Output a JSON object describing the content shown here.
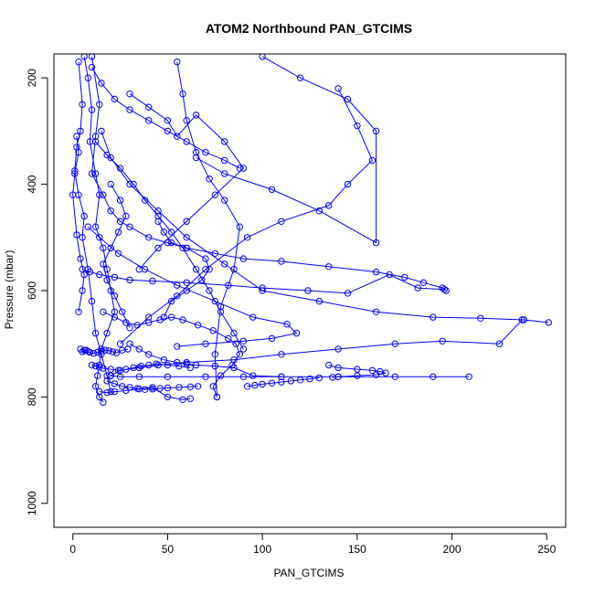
{
  "chart_data": {
    "type": "scatter",
    "title": "ATOM2 Northbound PAN_GTCIMS",
    "xlabel": "PAN_GTCIMS",
    "ylabel": "Pressure (mbar)",
    "xlim": [
      -10,
      260
    ],
    "ylim": [
      1045,
      155
    ],
    "y_reversed": true,
    "x_ticks": [
      0,
      50,
      100,
      150,
      200,
      250
    ],
    "y_ticks": [
      200,
      400,
      600,
      800,
      1000
    ],
    "grid": false,
    "legend": "none",
    "series_color": "#0000ff",
    "series": [
      {
        "x": [
          6,
          8,
          10,
          9,
          12,
          14,
          12,
          16,
          18,
          20,
          22,
          18,
          15,
          14,
          13,
          12,
          14,
          16
        ],
        "y": [
          160,
          200,
          260,
          320,
          380,
          420,
          480,
          520,
          560,
          600,
          640,
          680,
          710,
          740,
          760,
          780,
          800,
          810
        ]
      },
      {
        "x": [
          3,
          5,
          4,
          2,
          1,
          3,
          6,
          5,
          8,
          10,
          12,
          15,
          18,
          20
        ],
        "y": [
          170,
          250,
          300,
          330,
          375,
          420,
          460,
          500,
          560,
          620,
          680,
          720,
          760,
          790
        ]
      },
      {
        "x": [
          10,
          14,
          12,
          10,
          16,
          20,
          25,
          30,
          40,
          50,
          60,
          75,
          90,
          110,
          135,
          160,
          175,
          185,
          195,
          197
        ],
        "y": [
          160,
          250,
          310,
          380,
          420,
          450,
          470,
          480,
          500,
          510,
          520,
          530,
          540,
          545,
          555,
          565,
          575,
          585,
          595,
          600
        ]
      },
      {
        "x": [
          15,
          20,
          30,
          45,
          60,
          80,
          100,
          130,
          160,
          190,
          215,
          238,
          251
        ],
        "y": [
          300,
          350,
          400,
          450,
          500,
          550,
          600,
          620,
          640,
          650,
          652,
          655,
          660
        ]
      },
      {
        "x": [
          237,
          225,
          195,
          170,
          140,
          110,
          85,
          60,
          45,
          35,
          25,
          20
        ],
        "y": [
          655,
          700,
          695,
          700,
          710,
          720,
          730,
          735,
          740,
          745,
          750,
          760
        ]
      },
      {
        "x": [
          20,
          25,
          35,
          50,
          70,
          90,
          110,
          140,
          170,
          190,
          209
        ],
        "y": [
          760,
          762,
          762,
          762,
          762,
          762,
          762,
          762,
          762,
          762,
          762
        ]
      },
      {
        "x": [
          140,
          150,
          158,
          145,
          135,
          110,
          92,
          70,
          55,
          40,
          25
        ],
        "y": [
          220,
          290,
          355,
          400,
          440,
          470,
          500,
          560,
          610,
          650,
          700
        ]
      },
      {
        "x": [
          100,
          120,
          145,
          160,
          160,
          130,
          105,
          80,
          65
        ],
        "y": [
          160,
          200,
          240,
          300,
          510,
          450,
          410,
          380,
          350
        ]
      },
      {
        "x": [
          30,
          40,
          50,
          55,
          65,
          80,
          90,
          75,
          60,
          45,
          35
        ],
        "y": [
          230,
          255,
          280,
          310,
          270,
          320,
          370,
          420,
          470,
          520,
          560
        ]
      },
      {
        "x": [
          12,
          18,
          25,
          32,
          38,
          45,
          52,
          58,
          65,
          72,
          78,
          85,
          90
        ],
        "y": [
          320,
          345,
          370,
          400,
          430,
          460,
          490,
          520,
          560,
          600,
          640,
          680,
          710
        ]
      },
      {
        "x": [
          16,
          22,
          28,
          34,
          40,
          46,
          52,
          58,
          66,
          74,
          82,
          86,
          88,
          84,
          78,
          74,
          76
        ],
        "y": [
          640,
          650,
          660,
          665,
          660,
          655,
          650,
          655,
          665,
          675,
          690,
          700,
          720,
          740,
          760,
          780,
          800
        ]
      },
      {
        "x": [
          8,
          14,
          24,
          38,
          55,
          75,
          95,
          113,
          118,
          105,
          90,
          70,
          55
        ],
        "y": [
          480,
          500,
          530,
          560,
          590,
          620,
          650,
          663,
          680,
          690,
          695,
          700,
          705
        ]
      },
      {
        "x": [
          5,
          9,
          14,
          22,
          30,
          42,
          60,
          82,
          100,
          124,
          145,
          167,
          182,
          196
        ],
        "y": [
          560,
          565,
          570,
          575,
          580,
          582,
          585,
          590,
          595,
          600,
          605,
          570,
          595,
          598
        ]
      },
      {
        "x": [
          10,
          15,
          22,
          30,
          40,
          50,
          60,
          70,
          80,
          88
        ],
        "y": [
          180,
          210,
          240,
          260,
          280,
          300,
          320,
          340,
          355,
          370
        ]
      },
      {
        "x": [
          30,
          35,
          40,
          48,
          55,
          60,
          65,
          75,
          85,
          95,
          110
        ],
        "y": [
          700,
          710,
          720,
          730,
          735,
          738,
          740,
          742,
          745,
          760,
          762
        ]
      },
      {
        "x": [
          18,
          22,
          26,
          30,
          34,
          38,
          42,
          46,
          50,
          56,
          62,
          66
        ],
        "y": [
          770,
          775,
          780,
          782,
          784,
          786,
          785,
          784,
          783,
          782,
          781,
          780
        ]
      },
      {
        "x": [
          4,
          6,
          8,
          7,
          5,
          9,
          11,
          13,
          15,
          17,
          19,
          21,
          23,
          26,
          29
        ],
        "y": [
          710,
          712,
          714,
          712,
          715,
          716,
          718,
          716,
          714,
          712,
          713,
          715,
          717,
          712,
          710
        ]
      },
      {
        "x": [
          10,
          12,
          14,
          16,
          20,
          24,
          28,
          32,
          36,
          40,
          44,
          50,
          56,
          62
        ],
        "y": [
          740,
          742,
          744,
          746,
          748,
          750,
          748,
          745,
          742,
          740,
          738,
          740,
          742,
          745
        ]
      },
      {
        "x": [
          55,
          58,
          60,
          65,
          72,
          80,
          88,
          85,
          78,
          75,
          76
        ],
        "y": [
          170,
          230,
          280,
          340,
          390,
          430,
          480,
          560,
          630,
          720,
          800
        ]
      },
      {
        "x": [
          20,
          25,
          28,
          24,
          20,
          16,
          18,
          22,
          26,
          30
        ],
        "y": [
          400,
          430,
          460,
          490,
          520,
          550,
          580,
          610,
          640,
          670
        ]
      },
      {
        "x": [
          2,
          3,
          1,
          0,
          2,
          4,
          6,
          5,
          3
        ],
        "y": [
          310,
          340,
          380,
          420,
          495,
          540,
          570,
          600,
          640
        ]
      },
      {
        "x": [
          45,
          48,
          52,
          60,
          70,
          72,
          68,
          60,
          52,
          48
        ],
        "y": [
          470,
          490,
          510,
          520,
          540,
          560,
          580,
          600,
          620,
          650
        ]
      },
      {
        "x": [
          14,
          18,
          22,
          28,
          35,
          42,
          50,
          58,
          62
        ],
        "y": [
          790,
          792,
          790,
          788,
          785,
          782,
          800,
          805,
          803
        ]
      },
      {
        "x": [
          135,
          140,
          150,
          158,
          162,
          165,
          160,
          150,
          140,
          137
        ],
        "y": [
          740,
          745,
          748,
          750,
          752,
          755,
          758,
          760,
          762,
          763
        ]
      },
      {
        "x": [
          92,
          96,
          100,
          105,
          110,
          115,
          120,
          125,
          130
        ],
        "y": [
          780,
          778,
          776,
          774,
          772,
          770,
          768,
          766,
          764
        ]
      }
    ]
  }
}
